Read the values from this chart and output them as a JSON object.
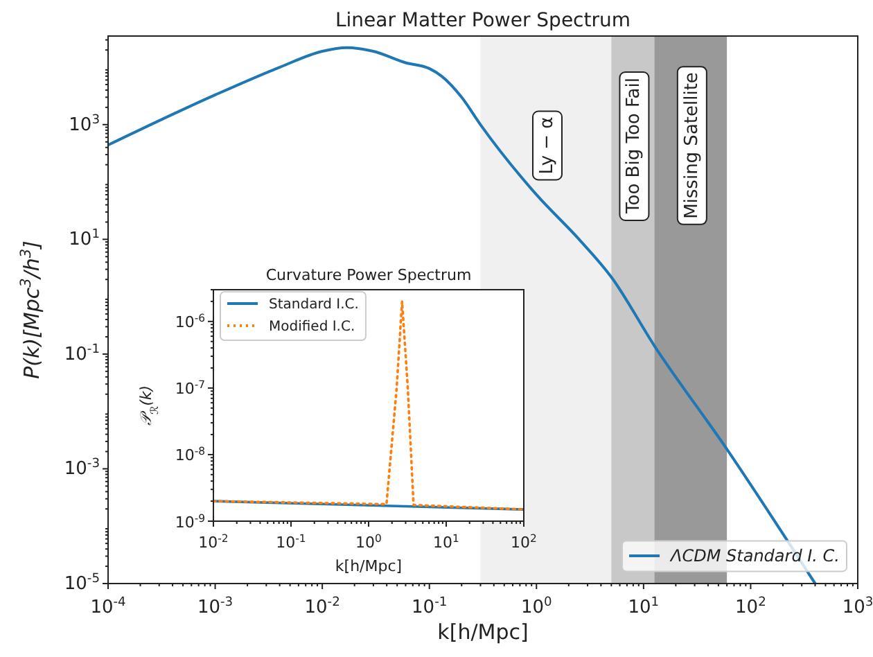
{
  "chart_data": [
    {
      "type": "line",
      "title": "Linear Matter Power Spectrum",
      "xlabel": "k[h/Mpc]",
      "ylabel": "P(k)[Mpc$^{3}$/h$^{3}$]",
      "log": "xy",
      "grid": false,
      "legend": "bottom right",
      "marker": "none",
      "line_style": "solid",
      "xlim": [
        0.0001,
        1000
      ],
      "ylim": [
        1e-05,
        35000
      ],
      "xticks": [
        {
          "value": 0.0001,
          "label": "10$^{-4}$"
        },
        {
          "value": 0.001,
          "label": "10$^{-3}$"
        },
        {
          "value": 0.01,
          "label": "10$^{-2}$"
        },
        {
          "value": 0.1,
          "label": "10$^{-1}$"
        },
        {
          "value": 1,
          "label": "10$^{0}$"
        },
        {
          "value": 10,
          "label": "10$^{1}$"
        },
        {
          "value": 100,
          "label": "10$^{2}$"
        },
        {
          "value": 1000,
          "label": "10$^{3}$"
        }
      ],
      "yticks": [
        {
          "value": 1e-05,
          "label": "10$^{-5}$"
        },
        {
          "value": 0.001,
          "label": "10$^{-3}$"
        },
        {
          "value": 0.1,
          "label": "10$^{-1}$"
        },
        {
          "value": 10,
          "label": "10$^{1}$"
        },
        {
          "value": 1000,
          "label": "10$^{3}$"
        }
      ],
      "bands": [
        {
          "axis": "x",
          "from": 0.3,
          "to": 5,
          "label": "Ly − α",
          "color": "#f0f0f0"
        },
        {
          "axis": "x",
          "from": 5,
          "to": 12.6,
          "label": "Too Big Too Fail",
          "color": "#c8c8c8"
        },
        {
          "axis": "x",
          "from": 12.6,
          "to": 60,
          "label": "Missing Satellite",
          "color": "#999999"
        }
      ],
      "series": [
        {
          "name": "ΛCDM Standard I. C.",
          "color": "#1f77b4",
          "x": [
            0.0001,
            0.001,
            0.004,
            0.01,
            0.017,
            0.03,
            0.06,
            0.1,
            0.13,
            0.2,
            0.3,
            1,
            2.5,
            5,
            12.6,
            60,
            400
          ],
          "values": [
            440,
            3300,
            10000,
            19000,
            22000,
            19000,
            12000,
            9500,
            7000,
            3000,
            1000,
            60,
            10,
            2.2,
            0.14,
            0.0022,
            1e-05
          ]
        }
      ]
    },
    {
      "type": "line",
      "title": "Curvature Power Spectrum",
      "xlabel": "k[h/Mpc]",
      "ylabel": "𝒫$_{ℛ}$(k)",
      "log": "xy",
      "grid": false,
      "legend": "top left",
      "marker": "none",
      "xlim": [
        0.01,
        100
      ],
      "ylim": [
        1e-09,
        3e-06
      ],
      "xticks": [
        {
          "value": 0.01,
          "label": "10$^{-2}$"
        },
        {
          "value": 0.1,
          "label": "10$^{-1}$"
        },
        {
          "value": 1,
          "label": "10$^{0}$"
        },
        {
          "value": 10,
          "label": "10$^{1}$"
        },
        {
          "value": 100,
          "label": "10$^{2}$"
        }
      ],
      "yticks": [
        {
          "value": 1e-09,
          "label": "10$^{-9}$"
        },
        {
          "value": 1e-08,
          "label": "10$^{-8}$"
        },
        {
          "value": 1e-07,
          "label": "10$^{-7}$"
        },
        {
          "value": 1e-06,
          "label": "10$^{-6}$"
        }
      ],
      "series": [
        {
          "name": "Standard I.C.",
          "color": "#1f77b4",
          "line_style": "solid",
          "x": [
            0.01,
            100
          ],
          "values": [
            2e-09,
            1.5e-09
          ]
        },
        {
          "name": "Modified I.C.",
          "color": "#ff7f0e",
          "line_style": "dotted",
          "x": [
            0.01,
            1.7,
            2.3,
            2.7,
            3.2,
            3.8,
            100
          ],
          "values": [
            2e-09,
            1.8e-09,
            1e-07,
            2e-06,
            1e-07,
            1.75e-09,
            1.5e-09
          ]
        }
      ]
    }
  ]
}
